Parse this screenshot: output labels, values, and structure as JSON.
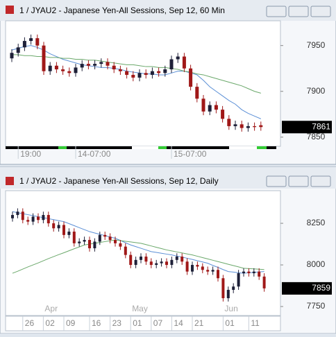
{
  "chart_data": [
    {
      "type": "candlestick",
      "title": "1 / JYAU2 - Japanese Yen-All Sessions, Sep 12, 60 Min",
      "up_color": "#1e2038",
      "down_color": "#a01818",
      "categories": [
        null,
        "19:00",
        null,
        null,
        null,
        null,
        null,
        null,
        null,
        null,
        "14-07:00",
        null,
        null,
        null,
        null,
        null,
        null,
        null,
        null,
        null,
        null,
        null,
        null,
        null,
        null,
        "15-07:00",
        null,
        null,
        null,
        null,
        null,
        null,
        null,
        null,
        null,
        null,
        null,
        null,
        null,
        null
      ],
      "open": [
        7936,
        7942,
        7948,
        7955,
        7958,
        7950,
        7922,
        7928,
        7924,
        7922,
        7920,
        7926,
        7930,
        7928,
        7930,
        7932,
        7928,
        7924,
        7922,
        7918,
        7915,
        7920,
        7918,
        7922,
        7920,
        7924,
        7935,
        7938,
        7925,
        7905,
        7892,
        7878,
        7885,
        7880,
        7870,
        7862,
        7864,
        7860,
        7862,
        7863
      ],
      "high": [
        7946,
        7952,
        7959,
        7962,
        7962,
        7954,
        7932,
        7932,
        7928,
        7926,
        7930,
        7934,
        7934,
        7934,
        7936,
        7936,
        7932,
        7928,
        7926,
        7922,
        7924,
        7924,
        7926,
        7926,
        7928,
        7939,
        7942,
        7942,
        7929,
        7909,
        7896,
        7889,
        7889,
        7884,
        7874,
        7868,
        7868,
        7866,
        7866,
        7867
      ],
      "low": [
        7932,
        7938,
        7944,
        7951,
        7946,
        7918,
        7918,
        7920,
        7918,
        7916,
        7916,
        7922,
        7924,
        7924,
        7926,
        7924,
        7920,
        7918,
        7914,
        7911,
        7911,
        7914,
        7914,
        7916,
        7916,
        7920,
        7931,
        7921,
        7901,
        7888,
        7874,
        7874,
        7876,
        7866,
        7858,
        7858,
        7856,
        7856,
        7857,
        7857
      ],
      "close": [
        7942,
        7948,
        7955,
        7958,
        7950,
        7922,
        7928,
        7924,
        7922,
        7920,
        7926,
        7930,
        7928,
        7930,
        7932,
        7928,
        7924,
        7922,
        7918,
        7915,
        7920,
        7918,
        7922,
        7920,
        7924,
        7935,
        7938,
        7925,
        7905,
        7892,
        7878,
        7885,
        7880,
        7870,
        7862,
        7864,
        7860,
        7862,
        7861,
        7861
      ],
      "series": [
        {
          "color": "#5b8fd6",
          "values": [
            7945,
            7947,
            7949,
            7950,
            7948,
            7945,
            7941,
            7938,
            7935,
            7933,
            7931,
            7929,
            7928,
            7927,
            7926,
            7926,
            7925,
            7924,
            7922,
            7921,
            7920,
            7919,
            7919,
            7918,
            7918,
            7920,
            7922,
            7922,
            7920,
            7918,
            7912,
            7905,
            7900,
            7895,
            7890,
            7886,
            7880,
            7876,
            7873,
            7870
          ]
        },
        {
          "color": "#6aa86a",
          "values": [
            7940,
            7940,
            7939,
            7939,
            7938,
            7938,
            7937,
            7937,
            7936,
            7936,
            7935,
            7935,
            7934,
            7934,
            7933,
            7932,
            7931,
            7930,
            7929,
            7929,
            7928,
            7927,
            7927,
            7926,
            7926,
            7925,
            7924,
            7922,
            7921,
            7919,
            7918,
            7916,
            7914,
            7912,
            7910,
            7908,
            7906,
            7903,
            7900,
            7898
          ]
        }
      ],
      "ylim": [
        7840,
        7977
      ],
      "yticks": [
        7850,
        7900,
        7950
      ],
      "last_price": 7861
    },
    {
      "type": "candlestick",
      "title": "1 / JYAU2 - Japanese Yen-All Sessions, Sep 12, Daily",
      "up_color": "#1e2038",
      "down_color": "#a01818",
      "categories": [
        null,
        null,
        "26",
        null,
        null,
        null,
        "02",
        null,
        null,
        null,
        "09",
        null,
        null,
        null,
        null,
        "16",
        null,
        null,
        null,
        "23",
        null,
        null,
        null,
        "01",
        null,
        null,
        null,
        "07",
        null,
        null,
        null,
        "14",
        null,
        null,
        null,
        "21",
        null,
        null,
        null,
        null,
        null,
        "01",
        null,
        null,
        null,
        null,
        "11",
        null,
        null,
        null
      ],
      "months": [
        null,
        null,
        null,
        null,
        null,
        null,
        "Apr",
        null,
        null,
        null,
        null,
        null,
        null,
        null,
        null,
        null,
        null,
        null,
        null,
        null,
        null,
        null,
        null,
        "May",
        null,
        null,
        null,
        null,
        null,
        null,
        null,
        null,
        null,
        null,
        null,
        null,
        null,
        null,
        null,
        null,
        null,
        "Jun",
        null,
        null,
        null,
        null,
        null,
        null,
        null,
        null
      ],
      "open": [
        8280,
        8300,
        8320,
        8270,
        8260,
        8290,
        8270,
        8300,
        8250,
        8220,
        8240,
        8180,
        8200,
        8130,
        8140,
        8150,
        8100,
        8140,
        8180,
        8170,
        8150,
        8130,
        8110,
        8060,
        8000,
        8030,
        8050,
        8020,
        8000,
        8010,
        8020,
        8000,
        8030,
        8050,
        8020,
        7960,
        8000,
        7990,
        7970,
        7960,
        7970,
        7920,
        7800,
        7850,
        7870,
        7950,
        7960,
        7950,
        7960,
        7930
      ],
      "high": [
        8320,
        8340,
        8340,
        8290,
        8310,
        8310,
        8320,
        8320,
        8270,
        8260,
        8260,
        8220,
        8220,
        8160,
        8170,
        8170,
        8160,
        8200,
        8200,
        8190,
        8170,
        8150,
        8130,
        8080,
        8050,
        8070,
        8070,
        8040,
        8030,
        8040,
        8040,
        8050,
        8070,
        8070,
        8040,
        8020,
        8020,
        8010,
        7990,
        7990,
        7990,
        7940,
        7870,
        7890,
        7970,
        7980,
        7980,
        7980,
        7980,
        7950
      ],
      "low": [
        8260,
        8280,
        8250,
        8240,
        8240,
        8250,
        8250,
        8230,
        8200,
        8200,
        8160,
        8160,
        8110,
        8110,
        8120,
        8080,
        8080,
        8120,
        8150,
        8130,
        8110,
        8090,
        8040,
        7980,
        7980,
        8010,
        8000,
        7980,
        7980,
        7990,
        7980,
        7980,
        8010,
        8000,
        7940,
        7940,
        7970,
        7950,
        7940,
        7940,
        7900,
        7780,
        7780,
        7830,
        7850,
        7930,
        7930,
        7930,
        7910,
        7839
      ],
      "close": [
        8300,
        8320,
        8270,
        8260,
        8290,
        8270,
        8300,
        8250,
        8220,
        8240,
        8180,
        8200,
        8130,
        8140,
        8150,
        8100,
        8140,
        8180,
        8170,
        8150,
        8130,
        8110,
        8060,
        8000,
        8030,
        8050,
        8020,
        8000,
        8010,
        8020,
        8000,
        8030,
        8050,
        8020,
        7960,
        8000,
        7990,
        7970,
        7960,
        7970,
        7920,
        7800,
        7850,
        7870,
        7950,
        7960,
        7950,
        7960,
        7930,
        7859
      ],
      "series": [
        {
          "color": "#5b8fd6",
          "values": [
            8320,
            8314,
            8308,
            8302,
            8296,
            8290,
            8284,
            8278,
            8272,
            8266,
            8260,
            8248,
            8236,
            8224,
            8212,
            8200,
            8192,
            8184,
            8176,
            8168,
            8160,
            8147,
            8133,
            8120,
            8110,
            8100,
            8090,
            8080,
            8075,
            8070,
            8065,
            8060,
            8053,
            8047,
            8040,
            8033,
            8025,
            8018,
            8010,
            7997,
            7985,
            7972,
            7960,
            7957,
            7953,
            7950,
            7953,
            7955,
            7958,
            7960
          ]
        },
        {
          "color": "#6aa86a",
          "values": [
            7950,
            7962,
            7975,
            7988,
            8000,
            8012,
            8025,
            8038,
            8050,
            8062,
            8073,
            8085,
            8097,
            8108,
            8120,
            8125,
            8130,
            8135,
            8140,
            8145,
            8150,
            8146,
            8142,
            8138,
            8134,
            8130,
            8122,
            8114,
            8106,
            8098,
            8090,
            8084,
            8078,
            8072,
            8066,
            8060,
            8052,
            8044,
            8036,
            8028,
            8020,
            8012,
            8004,
            7996,
            7988,
            7980,
            7978,
            7976,
            7974,
            7972
          ]
        }
      ],
      "ylim": [
        7696,
        8446
      ],
      "yticks": [
        7750,
        8000,
        8250
      ],
      "last_price": 7859
    }
  ]
}
